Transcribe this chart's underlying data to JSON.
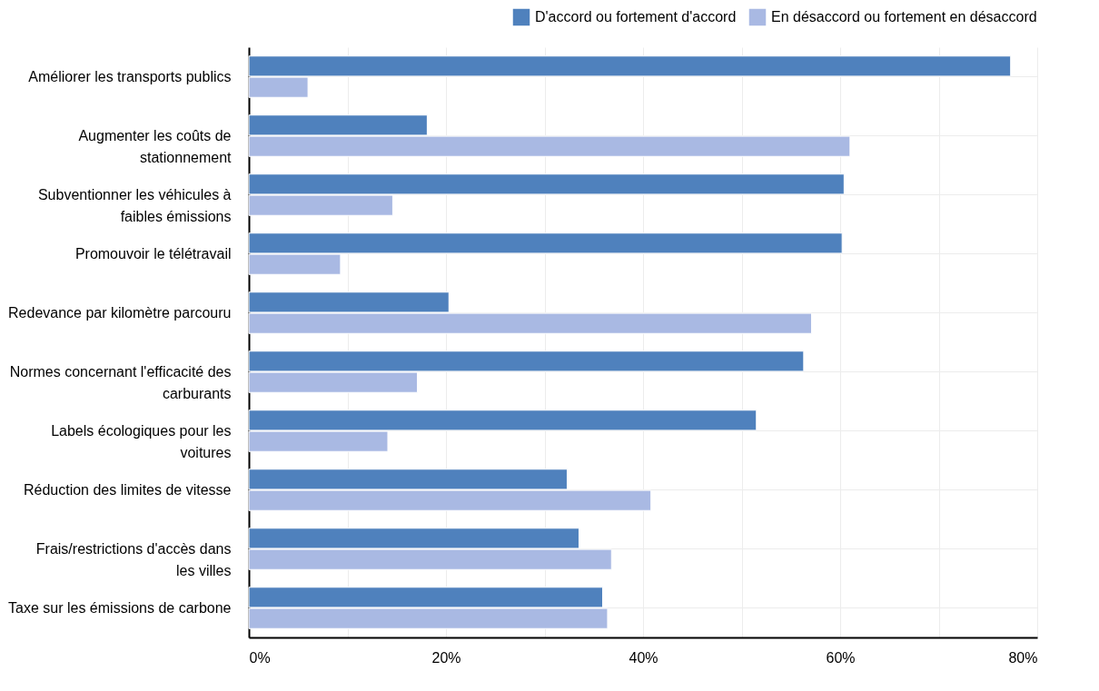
{
  "chart_data": {
    "type": "bar",
    "orientation": "horizontal",
    "categories": [
      "Améliorer les transports publics",
      "Augmenter les coûts de stationnement",
      "Subventionner les véhicules à faibles émissions",
      "Promouvoir le télétravail",
      "Redevance par kilomètre parcouru",
      "Normes concernant l'efficacité des carburants",
      "Labels écologiques pour les voitures",
      "Réduction des limites de vitesse",
      "Frais/restrictions d'accès dans les villes",
      "Taxe sur les émissions de carbone"
    ],
    "series": [
      {
        "name": "D'accord ou fortement d'accord",
        "color": "#4f81bd",
        "values": [
          77.3,
          18.1,
          60.4,
          60.2,
          20.3,
          56.3,
          51.5,
          32.3,
          33.5,
          35.9
        ]
      },
      {
        "name": "En désaccord ou fortement en désaccord",
        "color": "#a9b9e3",
        "values": [
          6.0,
          61.0,
          14.6,
          9.3,
          57.1,
          17.1,
          14.1,
          40.8,
          36.8,
          36.4
        ]
      }
    ],
    "xlim": [
      0,
      80
    ],
    "xticks": [
      {
        "value": 0,
        "label": "0%"
      },
      {
        "value": 10,
        "label": null
      },
      {
        "value": 20,
        "label": "20%"
      },
      {
        "value": 30,
        "label": null
      },
      {
        "value": 40,
        "label": "40%"
      },
      {
        "value": 50,
        "label": null
      },
      {
        "value": 60,
        "label": "60%"
      },
      {
        "value": 70,
        "label": null
      },
      {
        "value": 80,
        "label": "80%"
      }
    ],
    "grid": true,
    "legend": "top"
  }
}
